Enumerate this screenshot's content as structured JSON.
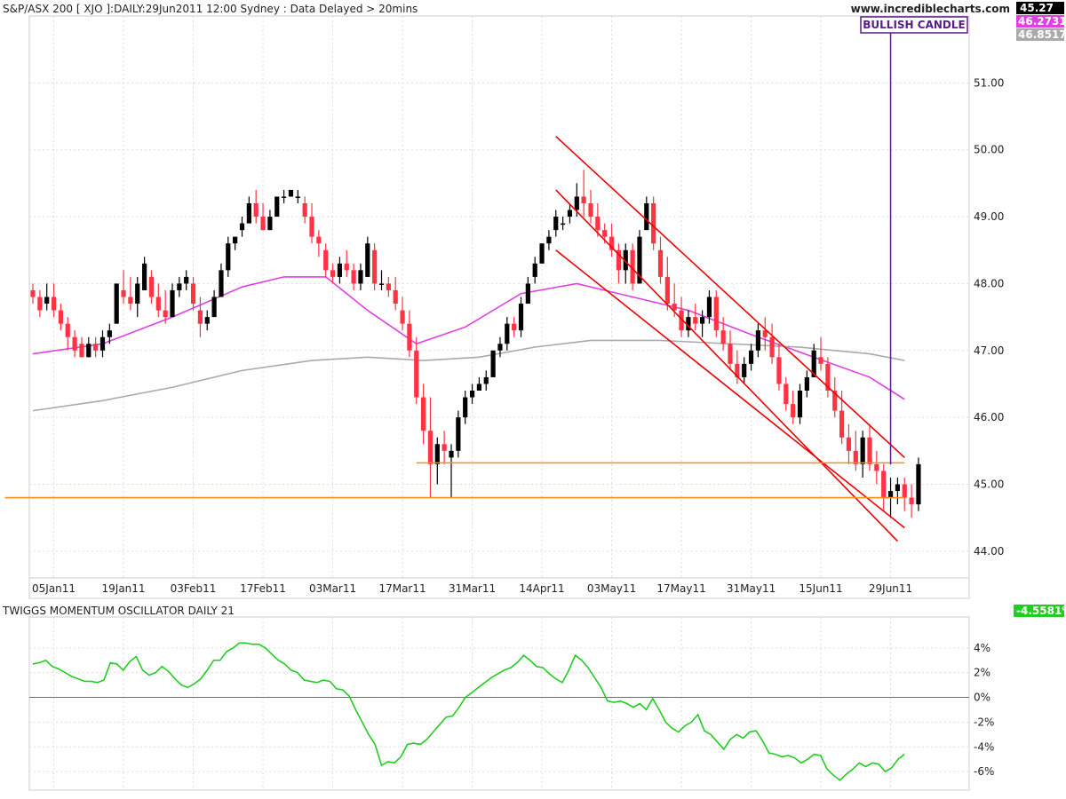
{
  "header": {
    "title": "S&P/ASX 200 [ XJO ]:DAILY:29Jun2011 12:00 Sydney : Data Delayed > 20mins",
    "site": "www.incrediblecharts.com",
    "last_price": "45.27",
    "ma_fast_value": "46.2731",
    "ma_slow_value": "46.8517"
  },
  "annotation": {
    "label": "BULLISH CANDLE"
  },
  "oscillator": {
    "title": "TWIGGS MOMENTUM OSCILLATOR DAILY 21",
    "value_label": "-4.5581%"
  },
  "colors": {
    "up_candle": "#000000",
    "down_candle": "#ff3344",
    "ma_fast": "#e040e0",
    "ma_slow": "#aaaaaa",
    "channel": "#ee0000",
    "support": "#ff8c1a",
    "annotation": "#5a1a8c",
    "oscillator": "#22cc22",
    "zero_line": "#6666aa"
  },
  "chart_data": [
    {
      "type": "candlestick",
      "title": "S&P/ASX 200 [ XJO ]",
      "ylim": [
        43.6,
        52.0
      ],
      "y_ticks": [
        "44.00",
        "45.00",
        "46.00",
        "47.00",
        "48.00",
        "49.00",
        "50.00",
        "51.00"
      ],
      "y_tick_values": [
        44,
        45,
        46,
        47,
        48,
        49,
        50,
        51
      ],
      "x_ticks": [
        "05Jan11",
        "19Jan11",
        "03Feb11",
        "17Feb11",
        "03Mar11",
        "17Mar11",
        "31Mar11",
        "14Apr11",
        "03May11",
        "17May11",
        "31May11",
        "15Jun11",
        "29Jun11"
      ],
      "x_tick_index": [
        3,
        13,
        23,
        33,
        43,
        53,
        63,
        73,
        83,
        93,
        103,
        113,
        123
      ],
      "candles": [
        [
          47.9,
          48.0,
          47.7,
          47.8
        ],
        [
          47.8,
          47.9,
          47.5,
          47.6
        ],
        [
          47.7,
          48.0,
          47.6,
          47.8
        ],
        [
          47.8,
          48.0,
          47.5,
          47.6
        ],
        [
          47.6,
          47.7,
          47.3,
          47.4
        ],
        [
          47.4,
          47.5,
          47.0,
          47.2
        ],
        [
          47.2,
          47.3,
          46.9,
          47.0
        ],
        [
          47.1,
          47.2,
          46.9,
          46.9
        ],
        [
          46.9,
          47.2,
          46.9,
          47.1
        ],
        [
          47.1,
          47.2,
          46.9,
          47.0
        ],
        [
          47.0,
          47.3,
          46.9,
          47.2
        ],
        [
          47.2,
          47.4,
          47.1,
          47.3
        ],
        [
          47.4,
          48.0,
          47.4,
          48.0
        ],
        [
          47.9,
          48.2,
          47.7,
          47.8
        ],
        [
          47.8,
          48.1,
          47.6,
          47.7
        ],
        [
          47.7,
          48.1,
          47.5,
          48.0
        ],
        [
          47.9,
          48.4,
          47.9,
          48.3
        ],
        [
          48.1,
          48.2,
          47.7,
          47.8
        ],
        [
          47.8,
          48.0,
          47.5,
          47.6
        ],
        [
          47.6,
          47.9,
          47.4,
          47.5
        ],
        [
          47.5,
          48.0,
          47.5,
          47.9
        ],
        [
          47.9,
          48.1,
          47.8,
          48.0
        ],
        [
          48.0,
          48.2,
          47.9,
          48.1
        ],
        [
          48.0,
          48.1,
          47.6,
          47.7
        ],
        [
          47.6,
          47.8,
          47.2,
          47.4
        ],
        [
          47.4,
          47.6,
          47.3,
          47.5
        ],
        [
          47.5,
          47.9,
          47.5,
          47.8
        ],
        [
          47.8,
          48.3,
          47.8,
          48.2
        ],
        [
          48.2,
          48.7,
          48.1,
          48.6
        ],
        [
          48.6,
          48.7,
          48.5,
          48.7
        ],
        [
          48.8,
          49.0,
          48.7,
          48.9
        ],
        [
          48.9,
          49.3,
          48.9,
          49.2
        ],
        [
          49.2,
          49.4,
          48.9,
          49.0
        ],
        [
          49.0,
          49.2,
          48.8,
          48.8
        ],
        [
          48.8,
          49.1,
          48.8,
          49.0
        ],
        [
          49.0,
          49.3,
          49.0,
          49.3
        ],
        [
          49.3,
          49.4,
          49.2,
          49.3
        ],
        [
          49.3,
          49.4,
          49.3,
          49.4
        ],
        [
          49.3,
          49.4,
          49.2,
          49.3
        ],
        [
          49.2,
          49.3,
          48.9,
          49.0
        ],
        [
          49.0,
          49.2,
          48.6,
          48.7
        ],
        [
          48.7,
          48.8,
          48.4,
          48.6
        ],
        [
          48.5,
          48.6,
          48.1,
          48.2
        ],
        [
          48.2,
          48.3,
          48.0,
          48.1
        ],
        [
          48.1,
          48.4,
          48.0,
          48.3
        ],
        [
          48.3,
          48.5,
          48.1,
          48.2
        ],
        [
          48.2,
          48.3,
          47.9,
          48.0
        ],
        [
          48.0,
          48.3,
          47.9,
          48.2
        ],
        [
          48.1,
          48.7,
          48.1,
          48.6
        ],
        [
          48.5,
          48.6,
          47.9,
          48.0
        ],
        [
          48.0,
          48.2,
          47.9,
          48.0
        ],
        [
          48.0,
          48.1,
          47.8,
          47.9
        ],
        [
          47.9,
          48.1,
          47.6,
          47.7
        ],
        [
          47.6,
          47.8,
          47.3,
          47.4
        ],
        [
          47.4,
          47.6,
          46.9,
          47.0
        ],
        [
          47.0,
          47.2,
          46.2,
          46.3
        ],
        [
          46.3,
          46.5,
          45.6,
          45.8
        ],
        [
          45.8,
          46.3,
          44.8,
          45.3
        ],
        [
          45.3,
          45.7,
          45.0,
          45.6
        ],
        [
          45.6,
          45.8,
          45.3,
          45.5
        ],
        [
          45.4,
          45.6,
          44.8,
          45.5
        ],
        [
          45.5,
          46.1,
          45.4,
          46.0
        ],
        [
          46.0,
          46.4,
          45.9,
          46.3
        ],
        [
          46.3,
          46.5,
          46.2,
          46.4
        ],
        [
          46.4,
          46.6,
          46.4,
          46.5
        ],
        [
          46.5,
          46.7,
          46.4,
          46.6
        ],
        [
          46.6,
          47.0,
          46.6,
          47.0
        ],
        [
          47.0,
          47.2,
          46.9,
          47.1
        ],
        [
          47.1,
          47.5,
          47.0,
          47.4
        ],
        [
          47.4,
          47.5,
          47.2,
          47.3
        ],
        [
          47.3,
          47.8,
          47.2,
          47.7
        ],
        [
          47.7,
          48.1,
          47.7,
          48.0
        ],
        [
          48.1,
          48.4,
          48.0,
          48.3
        ],
        [
          48.3,
          48.6,
          48.3,
          48.6
        ],
        [
          48.6,
          48.8,
          48.5,
          48.7
        ],
        [
          48.8,
          49.1,
          48.7,
          49.0
        ],
        [
          48.9,
          49.0,
          48.8,
          48.9
        ],
        [
          49.0,
          49.2,
          48.9,
          49.1
        ],
        [
          49.1,
          49.5,
          49.0,
          49.3
        ],
        [
          49.3,
          49.7,
          49.0,
          49.2
        ],
        [
          49.2,
          49.4,
          48.9,
          49.0
        ],
        [
          49.0,
          49.2,
          48.7,
          48.8
        ],
        [
          48.8,
          48.9,
          48.6,
          48.7
        ],
        [
          48.7,
          48.9,
          48.4,
          48.5
        ],
        [
          48.5,
          48.6,
          48.0,
          48.2
        ],
        [
          48.2,
          48.6,
          48.0,
          48.5
        ],
        [
          48.5,
          48.6,
          47.9,
          48.0
        ],
        [
          48.0,
          48.8,
          48.0,
          48.7
        ],
        [
          48.8,
          49.3,
          48.8,
          49.2
        ],
        [
          49.2,
          49.3,
          48.5,
          48.6
        ],
        [
          48.5,
          48.7,
          48.0,
          48.1
        ],
        [
          48.1,
          48.4,
          47.6,
          47.7
        ],
        [
          47.7,
          48.0,
          47.5,
          47.6
        ],
        [
          47.6,
          47.8,
          47.2,
          47.3
        ],
        [
          47.3,
          47.6,
          47.2,
          47.5
        ],
        [
          47.5,
          47.7,
          47.3,
          47.4
        ],
        [
          47.4,
          47.6,
          47.2,
          47.5
        ],
        [
          47.5,
          47.9,
          47.4,
          47.8
        ],
        [
          47.8,
          47.9,
          47.2,
          47.3
        ],
        [
          47.3,
          47.5,
          47.0,
          47.1
        ],
        [
          47.1,
          47.3,
          46.7,
          46.8
        ],
        [
          46.8,
          47.0,
          46.5,
          46.6
        ],
        [
          46.6,
          46.9,
          46.5,
          46.8
        ],
        [
          46.8,
          47.1,
          46.7,
          47.0
        ],
        [
          47.0,
          47.4,
          46.9,
          47.3
        ],
        [
          47.3,
          47.5,
          47.0,
          47.2
        ],
        [
          47.2,
          47.4,
          46.8,
          46.9
        ],
        [
          46.9,
          47.1,
          46.4,
          46.5
        ],
        [
          46.5,
          46.6,
          46.1,
          46.2
        ],
        [
          46.2,
          46.4,
          45.9,
          46.0
        ],
        [
          46.0,
          46.5,
          45.9,
          46.4
        ],
        [
          46.4,
          46.7,
          46.3,
          46.6
        ],
        [
          46.6,
          47.1,
          46.6,
          47.0
        ],
        [
          46.9,
          47.2,
          46.7,
          46.8
        ],
        [
          46.8,
          46.9,
          46.3,
          46.4
        ],
        [
          46.4,
          46.6,
          46.0,
          46.1
        ],
        [
          46.1,
          46.4,
          45.6,
          45.7
        ],
        [
          45.7,
          45.9,
          45.3,
          45.5
        ],
        [
          45.5,
          45.8,
          45.2,
          45.3
        ],
        [
          45.3,
          45.8,
          45.1,
          45.7
        ],
        [
          45.7,
          45.9,
          45.2,
          45.3
        ],
        [
          45.3,
          45.5,
          45.0,
          45.2
        ],
        [
          45.2,
          45.3,
          44.6,
          44.8
        ],
        [
          44.8,
          45.1,
          44.5,
          44.9
        ],
        [
          44.9,
          45.1,
          44.7,
          45.0
        ],
        [
          45.0,
          45.1,
          44.6,
          44.8
        ],
        [
          44.8,
          45.0,
          44.5,
          44.7
        ],
        [
          44.7,
          45.4,
          44.6,
          45.3
        ]
      ],
      "moving_averages": [
        {
          "name": "46.2731",
          "points": [
            [
              0,
              46.95
            ],
            [
              10,
              47.1
            ],
            [
              20,
              47.5
            ],
            [
              30,
              47.95
            ],
            [
              36,
              48.1
            ],
            [
              42,
              48.1
            ],
            [
              48,
              47.6
            ],
            [
              55,
              47.1
            ],
            [
              62,
              47.35
            ],
            [
              70,
              47.85
            ],
            [
              78,
              48.0
            ],
            [
              86,
              47.8
            ],
            [
              94,
              47.6
            ],
            [
              104,
              47.2
            ],
            [
              112,
              46.9
            ],
            [
              120,
              46.6
            ],
            [
              125,
              46.27
            ]
          ]
        },
        {
          "name": "46.8517",
          "points": [
            [
              0,
              46.1
            ],
            [
              10,
              46.25
            ],
            [
              20,
              46.45
            ],
            [
              30,
              46.7
            ],
            [
              40,
              46.85
            ],
            [
              48,
              46.9
            ],
            [
              56,
              46.85
            ],
            [
              64,
              46.9
            ],
            [
              72,
              47.05
            ],
            [
              80,
              47.15
            ],
            [
              90,
              47.15
            ],
            [
              100,
              47.1
            ],
            [
              110,
              47.05
            ],
            [
              120,
              46.95
            ],
            [
              125,
              46.85
            ]
          ]
        }
      ],
      "trendlines": [
        {
          "from": [
            75,
            50.2
          ],
          "to": [
            125,
            45.4
          ]
        },
        {
          "from": [
            75,
            48.5
          ],
          "to": [
            125,
            44.35
          ]
        },
        {
          "from": [
            75,
            49.4
          ],
          "to": [
            124,
            44.15
          ]
        }
      ],
      "horizontal_lines": [
        {
          "y": 44.8,
          "from": -4,
          "to": 125
        },
        {
          "y": 45.32,
          "from": 55,
          "to": 125
        }
      ],
      "annotation_at": 123
    },
    {
      "type": "line",
      "title": "TWIGGS MOMENTUM OSCILLATOR DAILY 21",
      "ylim": [
        -7.5,
        6.5
      ],
      "y_ticks": [
        "4%",
        "2%",
        "0%",
        "-2%",
        "-4%",
        "-6%"
      ],
      "y_tick_values": [
        4,
        2,
        0,
        -2,
        -4,
        -6
      ],
      "values": [
        2.7,
        2.8,
        3.0,
        2.5,
        2.3,
        2.0,
        1.7,
        1.5,
        1.3,
        1.3,
        1.2,
        1.4,
        2.8,
        2.7,
        2.2,
        2.9,
        3.3,
        2.2,
        1.8,
        2.0,
        2.5,
        2.1,
        1.5,
        1.0,
        0.8,
        1.1,
        1.5,
        2.2,
        3.0,
        3.0,
        3.7,
        4.0,
        4.4,
        4.4,
        4.3,
        4.3,
        4.0,
        3.5,
        3.0,
        2.7,
        2.2,
        2.0,
        1.4,
        1.3,
        1.2,
        1.4,
        1.3,
        0.7,
        0.6,
        0.1,
        -1.0,
        -2.0,
        -3.0,
        -3.8,
        -5.5,
        -5.2,
        -5.3,
        -4.8,
        -3.8,
        -3.7,
        -3.8,
        -3.4,
        -2.8,
        -2.2,
        -1.6,
        -1.5,
        -0.8,
        0.0,
        0.4,
        0.8,
        1.2,
        1.6,
        1.9,
        2.2,
        2.4,
        2.8,
        3.4,
        3.0,
        2.5,
        2.4,
        1.9,
        1.5,
        1.2,
        2.2,
        3.4,
        3.0,
        2.4,
        1.6,
        0.8,
        -0.3,
        -0.4,
        -0.3,
        -0.5,
        -0.8,
        -0.5,
        -1.0,
        -0.1,
        -1.0,
        -2.0,
        -2.5,
        -2.8,
        -2.3,
        -2.0,
        -1.4,
        -2.7,
        -3.0,
        -3.6,
        -4.2,
        -3.4,
        -3.0,
        -3.3,
        -2.8,
        -2.7,
        -3.5,
        -4.5,
        -4.6,
        -4.8,
        -4.7,
        -4.9,
        -5.3,
        -5.0,
        -4.6,
        -4.7,
        -5.8,
        -6.3,
        -6.7,
        -6.2,
        -5.8,
        -5.3,
        -5.6,
        -5.3,
        -5.4,
        -6.0,
        -5.7,
        -5.0,
        -4.6
      ]
    }
  ]
}
